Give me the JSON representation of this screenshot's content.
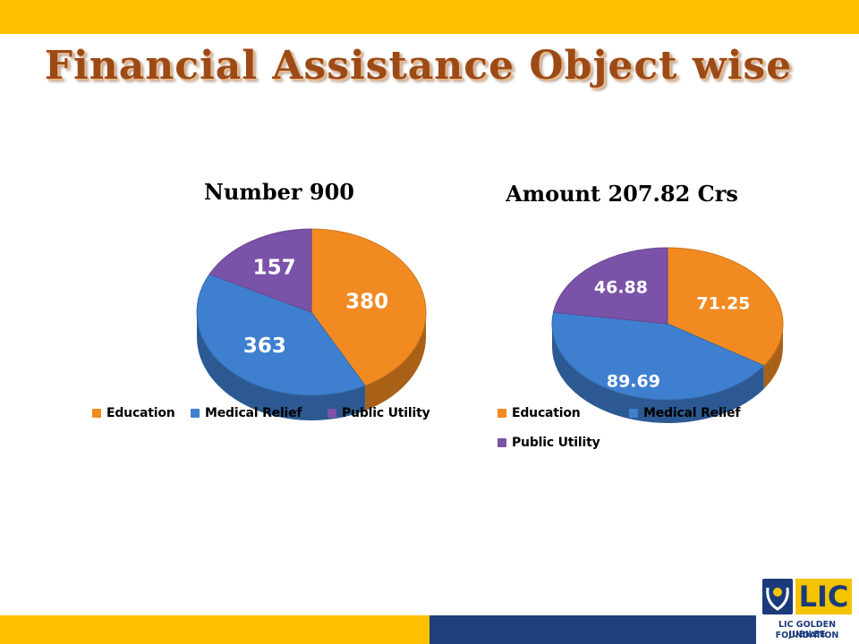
{
  "slide": {
    "title": "Financial Assistance Object wise",
    "colors": {
      "band_yellow": "#ffc000",
      "band_blue": "#1f3f7a",
      "title_brown": "#9c4a16"
    }
  },
  "chart_data": [
    {
      "type": "pie",
      "title": "Number 900",
      "categories": [
        "Education",
        "Medical  Relief",
        "Public  Utility"
      ],
      "values": [
        380,
        363,
        157
      ],
      "colors": [
        "#f28a22",
        "#3f7fcf",
        "#7a53a8"
      ],
      "legend": "bottom"
    },
    {
      "type": "pie",
      "title": "Amount 207.82  Crs",
      "categories": [
        "Education",
        "Medical Relief",
        "Public Utility"
      ],
      "values": [
        71.25,
        89.69,
        46.88
      ],
      "value_labels": [
        "71.25",
        "89.69",
        "46.88"
      ],
      "colors": [
        "#f28a22",
        "#3f7fcf",
        "#7a53a8"
      ],
      "legend": "bottom"
    }
  ],
  "logo": {
    "mark": "LIC",
    "line1": "LIC GOLDEN JUBILEE",
    "line2": "FOUNDATION"
  }
}
